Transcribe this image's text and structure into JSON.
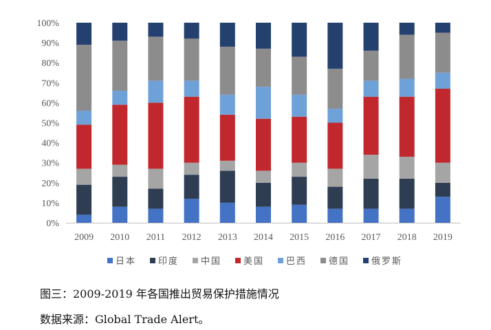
{
  "chart_data": {
    "type": "bar",
    "stacked": true,
    "normalized": true,
    "categories": [
      "2009",
      "2010",
      "2011",
      "2012",
      "2013",
      "2014",
      "2015",
      "2016",
      "2017",
      "2018",
      "2019"
    ],
    "ylim": [
      0,
      100
    ],
    "y_ticks": [
      "0%",
      "10%",
      "20%",
      "30%",
      "40%",
      "50%",
      "60%",
      "70%",
      "80%",
      "90%",
      "100%"
    ],
    "grid": false,
    "legend_position": "bottom",
    "series": [
      {
        "name": "日本",
        "color": "#4472C4",
        "values": [
          4,
          8,
          7,
          12,
          10,
          8,
          9,
          7,
          7,
          7,
          13
        ]
      },
      {
        "name": "印度",
        "color": "#2E3D52",
        "values": [
          15,
          15,
          10,
          12,
          16,
          12,
          14,
          11,
          15,
          15,
          7
        ]
      },
      {
        "name": "中国",
        "color": "#A5A5A5",
        "values": [
          8,
          6,
          10,
          6,
          5,
          6,
          7,
          9,
          12,
          11,
          10
        ]
      },
      {
        "name": "美国",
        "color": "#C0282D",
        "values": [
          22,
          30,
          33,
          33,
          23,
          26,
          23,
          23,
          29,
          30,
          37
        ]
      },
      {
        "name": "巴西",
        "color": "#6FA1D9",
        "values": [
          7,
          7,
          11,
          8,
          10,
          16,
          11,
          7,
          8,
          9,
          8
        ]
      },
      {
        "name": "德国",
        "color": "#8C8C8C",
        "values": [
          33,
          25,
          22,
          21,
          24,
          19,
          19,
          20,
          15,
          22,
          20
        ]
      },
      {
        "name": "俄罗斯",
        "color": "#24406E",
        "values": [
          11,
          9,
          7,
          8,
          12,
          13,
          17,
          23,
          14,
          6,
          5
        ]
      }
    ]
  },
  "caption": {
    "title": "图三：2009-2019 年各国推出贸易保护措施情况",
    "source": "数据来源：Global Trade Alert。"
  }
}
